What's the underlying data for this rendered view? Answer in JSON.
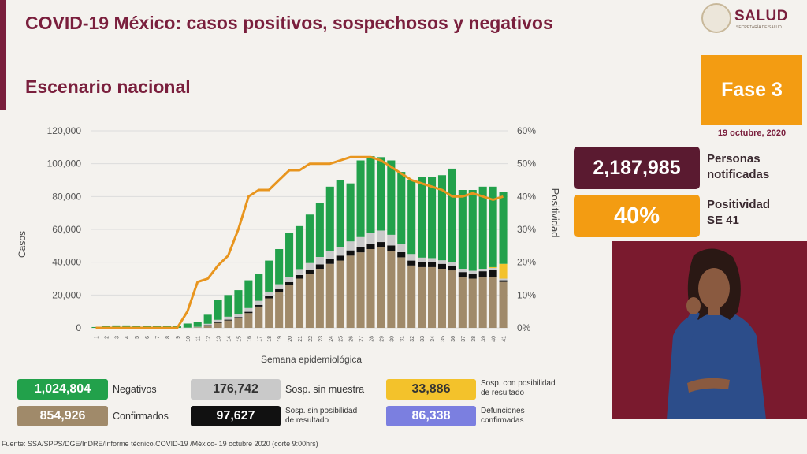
{
  "header": {
    "title": "COVID-19 México: casos positivos, sospechosos y negativos",
    "subtitle": "Escenario nacional"
  },
  "logo": {
    "name": "SALUD",
    "sub": "SECRETARÍA DE SALUD"
  },
  "fase": {
    "label": "Fase 3",
    "date": "19 octubre, 2020"
  },
  "stats": {
    "personas_value": "2,187,985",
    "personas_label_1": "Personas",
    "personas_label_2": "notificadas",
    "positividad_value": "40%",
    "positividad_label_1": "Positividad",
    "positividad_label_2": "SE 41"
  },
  "legend": {
    "negativos": {
      "value": "1,024,804",
      "label": "Negativos",
      "color": "#22a14b"
    },
    "confirmados": {
      "value": "854,926",
      "label": "Confirmados",
      "color": "#a08a6a"
    },
    "sin_muestra": {
      "value": "176,742",
      "label": "Sosp. sin muestra",
      "color": "#c9c9c9"
    },
    "sin_posibilidad": {
      "value": "97,627",
      "label_1": "Sosp. sin posibilidad",
      "label_2": "de resultado",
      "color": "#111111"
    },
    "con_posibilidad": {
      "value": "33,886",
      "label_1": "Sosp. con posibilidad",
      "label_2": "de resultado",
      "color": "#f3c22b"
    },
    "defunciones": {
      "value": "86,338",
      "label_1": "Defunciones",
      "label_2": "confirmadas",
      "color": "#7b7fe0"
    }
  },
  "footer": "Fuente: SSA/SPPS/DGE/InDRE/Informe técnico.COVID-19 /México- 19 octubre 2020 (corte 9:00hrs)",
  "chart_data": {
    "type": "bar",
    "stacked": true,
    "xlabel": "Semana epidemiológica",
    "ylabel": "Casos",
    "y2label": "Positividad",
    "ylim": [
      0,
      120000
    ],
    "y2lim": [
      0,
      60
    ],
    "yticks": [
      "0",
      "20,000",
      "40,000",
      "60,000",
      "80,000",
      "100,000",
      "120,000"
    ],
    "y2ticks": [
      "0%",
      "10%",
      "20%",
      "30%",
      "40%",
      "50%",
      "60%"
    ],
    "categories": [
      "1",
      "2",
      "3",
      "4",
      "5",
      "6",
      "7",
      "8",
      "9",
      "10",
      "11",
      "12",
      "13",
      "14",
      "15",
      "16",
      "17",
      "18",
      "19",
      "20",
      "21",
      "22",
      "23",
      "24",
      "25",
      "26",
      "27",
      "28",
      "29",
      "30",
      "31",
      "32",
      "33",
      "34",
      "35",
      "36",
      "37",
      "38",
      "39",
      "40",
      "41"
    ],
    "series": [
      {
        "name": "Confirmados",
        "color": "#a08a6a",
        "values": [
          0,
          0,
          0,
          0,
          0,
          0,
          0,
          0,
          0,
          50,
          300,
          1500,
          3000,
          4500,
          6000,
          9000,
          13000,
          18000,
          22000,
          26000,
          30000,
          33000,
          36000,
          39000,
          41000,
          44000,
          46000,
          48000,
          49000,
          47000,
          43000,
          38000,
          37000,
          37000,
          36000,
          35000,
          31000,
          30000,
          31000,
          31000,
          28000
        ]
      },
      {
        "name": "Sosp. sin posibilidad de resultado",
        "color": "#111111",
        "values": [
          0,
          0,
          0,
          0,
          0,
          0,
          0,
          0,
          0,
          0,
          50,
          200,
          400,
          500,
          600,
          800,
          1000,
          1300,
          1600,
          1900,
          2200,
          2500,
          2700,
          2900,
          3000,
          3200,
          3300,
          3400,
          3300,
          3200,
          3100,
          3000,
          3000,
          3000,
          3000,
          3000,
          3000,
          3000,
          3500,
          4500,
          1000
        ]
      },
      {
        "name": "Sosp. sin muestra",
        "color": "#c9c9c9",
        "values": [
          0,
          0,
          0,
          0,
          0,
          0,
          0,
          0,
          0,
          100,
          300,
          800,
          1500,
          1800,
          2000,
          2300,
          2500,
          2800,
          3000,
          3300,
          3600,
          4000,
          4500,
          4800,
          5200,
          5500,
          6000,
          6500,
          7000,
          6500,
          5000,
          4000,
          2800,
          2500,
          2200,
          2000,
          2000,
          1800,
          1500,
          1000,
          1000
        ]
      },
      {
        "name": "Sosp. con posibilidad de resultado",
        "color": "#f3c22b",
        "values": [
          0,
          0,
          0,
          0,
          0,
          0,
          0,
          0,
          0,
          0,
          0,
          0,
          0,
          0,
          0,
          0,
          0,
          0,
          0,
          0,
          0,
          0,
          0,
          0,
          0,
          0,
          0,
          0,
          0,
          0,
          0,
          0,
          0,
          0,
          0,
          0,
          0,
          0,
          0,
          500,
          9000
        ]
      },
      {
        "name": "Negativos",
        "color": "#22a14b",
        "values": [
          500,
          1000,
          1500,
          1500,
          1200,
          1000,
          1000,
          1000,
          1000,
          2500,
          2900,
          5500,
          12100,
          13200,
          14400,
          16900,
          16500,
          18900,
          21400,
          26800,
          26200,
          29500,
          32800,
          39300,
          40800,
          35300,
          46700,
          46700,
          44700,
          45300,
          43900,
          45000,
          49200,
          49500,
          51800,
          57000,
          48000,
          49200,
          50000,
          49000,
          44000
        ]
      }
    ],
    "line": {
      "name": "Positividad",
      "color": "#e8951e",
      "values": [
        0,
        0,
        0,
        0,
        0,
        0,
        0,
        0,
        0,
        5,
        14,
        15,
        19,
        22,
        30,
        40,
        42,
        42,
        45,
        48,
        48,
        50,
        50,
        50,
        51,
        52,
        52,
        52,
        51,
        49,
        47,
        45,
        44,
        43,
        42,
        40,
        40,
        41,
        40,
        39,
        40
      ]
    }
  }
}
